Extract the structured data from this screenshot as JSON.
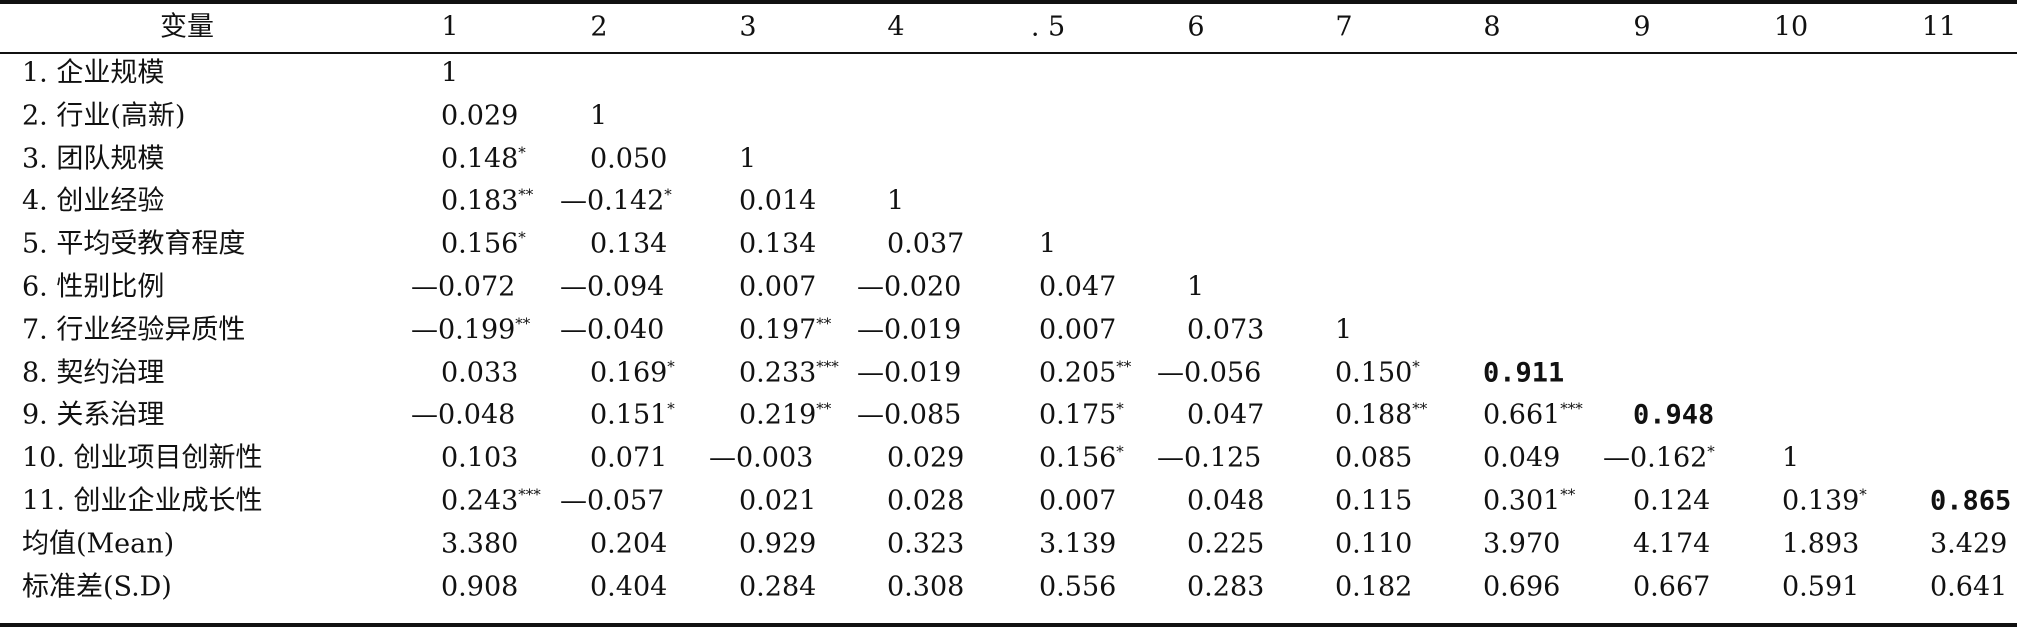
{
  "table": {
    "header": [
      "变量",
      "1",
      "2",
      "3",
      "4",
      ". 5",
      "6",
      "7",
      "8",
      "9",
      "10",
      "11"
    ],
    "rows": [
      {
        "label": "1. 企业规模",
        "cells": [
          {
            "v": "1"
          }
        ]
      },
      {
        "label": "2. 行业(高新)",
        "cells": [
          {
            "v": "0.029"
          },
          {
            "v": "1"
          }
        ]
      },
      {
        "label": "3. 团队规模",
        "cells": [
          {
            "v": "0.148",
            "sig": "*"
          },
          {
            "v": "0.050"
          },
          {
            "v": "1"
          }
        ]
      },
      {
        "label": "4. 创业经验",
        "cells": [
          {
            "v": "0.183",
            "sig": "**"
          },
          {
            "v": "—0.142",
            "sig": "*"
          },
          {
            "v": "0.014"
          },
          {
            "v": "1"
          }
        ]
      },
      {
        "label": "5. 平均受教育程度",
        "cells": [
          {
            "v": "0.156",
            "sig": "*"
          },
          {
            "v": "0.134"
          },
          {
            "v": "0.134"
          },
          {
            "v": "0.037"
          },
          {
            "v": "1"
          }
        ]
      },
      {
        "label": "6. 性别比例",
        "cells": [
          {
            "v": "—0.072"
          },
          {
            "v": "—0.094"
          },
          {
            "v": "0.007"
          },
          {
            "v": "—0.020"
          },
          {
            "v": "0.047"
          },
          {
            "v": "1"
          }
        ]
      },
      {
        "label": "7. 行业经验异质性",
        "cells": [
          {
            "v": "—0.199",
            "sig": "**"
          },
          {
            "v": "—0.040"
          },
          {
            "v": "0.197",
            "sig": "**"
          },
          {
            "v": "—0.019"
          },
          {
            "v": "0.007"
          },
          {
            "v": "0.073"
          },
          {
            "v": "1"
          }
        ]
      },
      {
        "label": "8. 契约治理",
        "cells": [
          {
            "v": "0.033"
          },
          {
            "v": "0.169",
            "sig": "*"
          },
          {
            "v": "0.233",
            "sig": "***"
          },
          {
            "v": "—0.019"
          },
          {
            "v": "0.205",
            "sig": "**"
          },
          {
            "v": "—0.056"
          },
          {
            "v": "0.150",
            "sig": "*"
          },
          {
            "v": "0.911",
            "bold": true
          }
        ]
      },
      {
        "label": "9. 关系治理",
        "cells": [
          {
            "v": "—0.048"
          },
          {
            "v": "0.151",
            "sig": "*"
          },
          {
            "v": "0.219",
            "sig": "**"
          },
          {
            "v": "—0.085"
          },
          {
            "v": "0.175",
            "sig": "*"
          },
          {
            "v": "0.047"
          },
          {
            "v": "0.188",
            "sig": "**"
          },
          {
            "v": "0.661",
            "sig": "***"
          },
          {
            "v": "0.948",
            "bold": true
          }
        ]
      },
      {
        "label": "10. 创业项目创新性",
        "cells": [
          {
            "v": "0.103"
          },
          {
            "v": "0.071"
          },
          {
            "v": "—0.003"
          },
          {
            "v": "0.029"
          },
          {
            "v": "0.156",
            "sig": "*"
          },
          {
            "v": "—0.125"
          },
          {
            "v": "0.085"
          },
          {
            "v": "0.049"
          },
          {
            "v": "—0.162",
            "sig": "*"
          },
          {
            "v": "1"
          }
        ]
      },
      {
        "label": "11. 创业企业成长性",
        "cells": [
          {
            "v": "0.243",
            "sig": "***"
          },
          {
            "v": "—0.057"
          },
          {
            "v": "0.021"
          },
          {
            "v": "0.028"
          },
          {
            "v": "0.007"
          },
          {
            "v": "0.048"
          },
          {
            "v": "0.115"
          },
          {
            "v": "0.301",
            "sig": "**"
          },
          {
            "v": "0.124"
          },
          {
            "v": "0.139",
            "sig": "*"
          },
          {
            "v": "0.865",
            "bold": true
          }
        ]
      },
      {
        "label": "均值(Mean)",
        "cells": [
          {
            "v": "3.380"
          },
          {
            "v": "0.204"
          },
          {
            "v": "0.929"
          },
          {
            "v": "0.323"
          },
          {
            "v": "3.139"
          },
          {
            "v": "0.225"
          },
          {
            "v": "0.110"
          },
          {
            "v": "3.970"
          },
          {
            "v": "4.174"
          },
          {
            "v": "1.893"
          },
          {
            "v": "3.429"
          }
        ]
      },
      {
        "label": "标准差(S.D)",
        "cells": [
          {
            "v": "0.908"
          },
          {
            "v": "0.404"
          },
          {
            "v": "0.284"
          },
          {
            "v": "0.308"
          },
          {
            "v": "0.556"
          },
          {
            "v": "0.283"
          },
          {
            "v": "0.182"
          },
          {
            "v": "0.696"
          },
          {
            "v": "0.667"
          },
          {
            "v": "0.591"
          },
          {
            "v": "0.641"
          }
        ]
      }
    ]
  }
}
